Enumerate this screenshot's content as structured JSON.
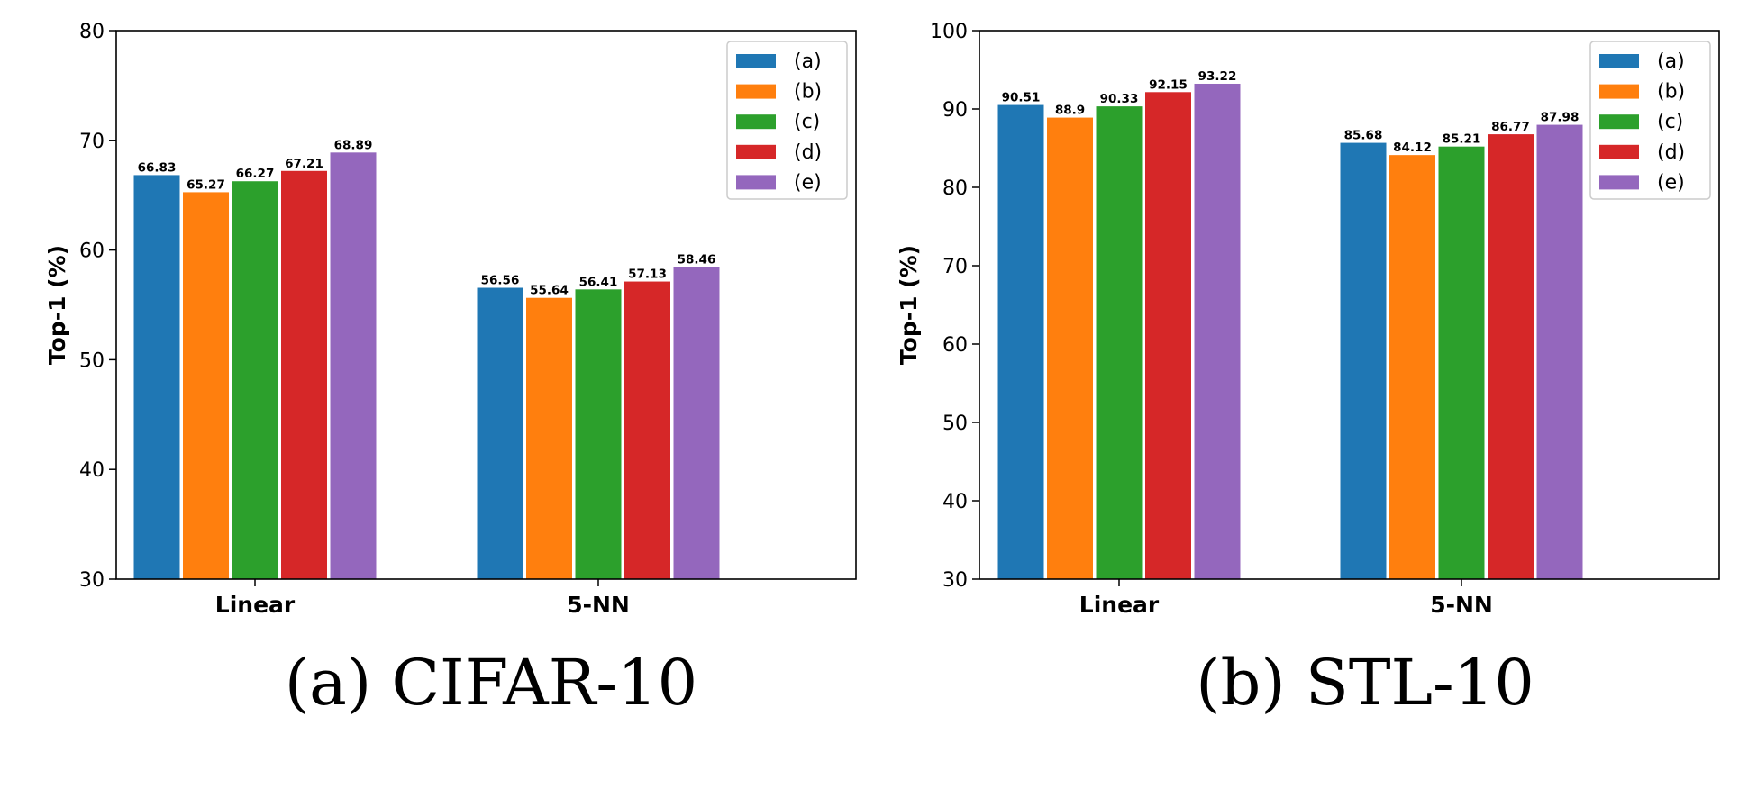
{
  "chart_data": [
    {
      "type": "bar",
      "caption": "(a) CIFAR-10",
      "ylabel": "Top-1 (%)",
      "ylim": [
        30,
        80
      ],
      "yticks": [
        30,
        40,
        50,
        60,
        70,
        80
      ],
      "categories": [
        "Linear",
        "5-NN"
      ],
      "legend_position": "top-right",
      "series": [
        {
          "name": "(a)",
          "color": "#1f77b4",
          "values": [
            66.83,
            56.56
          ],
          "labels": [
            "66.83",
            "56.56"
          ]
        },
        {
          "name": "(b)",
          "color": "#ff7f0e",
          "values": [
            65.27,
            55.64
          ],
          "labels": [
            "65.27",
            "55.64"
          ]
        },
        {
          "name": "(c)",
          "color": "#2ca02c",
          "values": [
            66.27,
            56.41
          ],
          "labels": [
            "66.27",
            "56.41"
          ]
        },
        {
          "name": "(d)",
          "color": "#d62728",
          "values": [
            67.21,
            57.13
          ],
          "labels": [
            "67.21",
            "57.13"
          ]
        },
        {
          "name": "(e)",
          "color": "#9467bd",
          "values": [
            68.89,
            58.46
          ],
          "labels": [
            "68.89",
            "58.46"
          ]
        }
      ]
    },
    {
      "type": "bar",
      "caption": "(b) STL-10",
      "ylabel": "Top-1 (%)",
      "ylim": [
        30,
        100
      ],
      "yticks": [
        30,
        40,
        50,
        60,
        70,
        80,
        90,
        100
      ],
      "categories": [
        "Linear",
        "5-NN"
      ],
      "legend_position": "top-right",
      "series": [
        {
          "name": "(a)",
          "color": "#1f77b4",
          "values": [
            90.51,
            85.68
          ],
          "labels": [
            "90.51",
            "85.68"
          ]
        },
        {
          "name": "(b)",
          "color": "#ff7f0e",
          "values": [
            88.9,
            84.12
          ],
          "labels": [
            "88.9",
            "84.12"
          ]
        },
        {
          "name": "(c)",
          "color": "#2ca02c",
          "values": [
            90.33,
            85.21
          ],
          "labels": [
            "90.33",
            "85.21"
          ]
        },
        {
          "name": "(d)",
          "color": "#d62728",
          "values": [
            92.15,
            86.77
          ],
          "labels": [
            "92.15",
            "86.77"
          ]
        },
        {
          "name": "(e)",
          "color": "#9467bd",
          "values": [
            93.22,
            87.98
          ],
          "labels": [
            "93.22",
            "87.98"
          ]
        }
      ]
    }
  ]
}
